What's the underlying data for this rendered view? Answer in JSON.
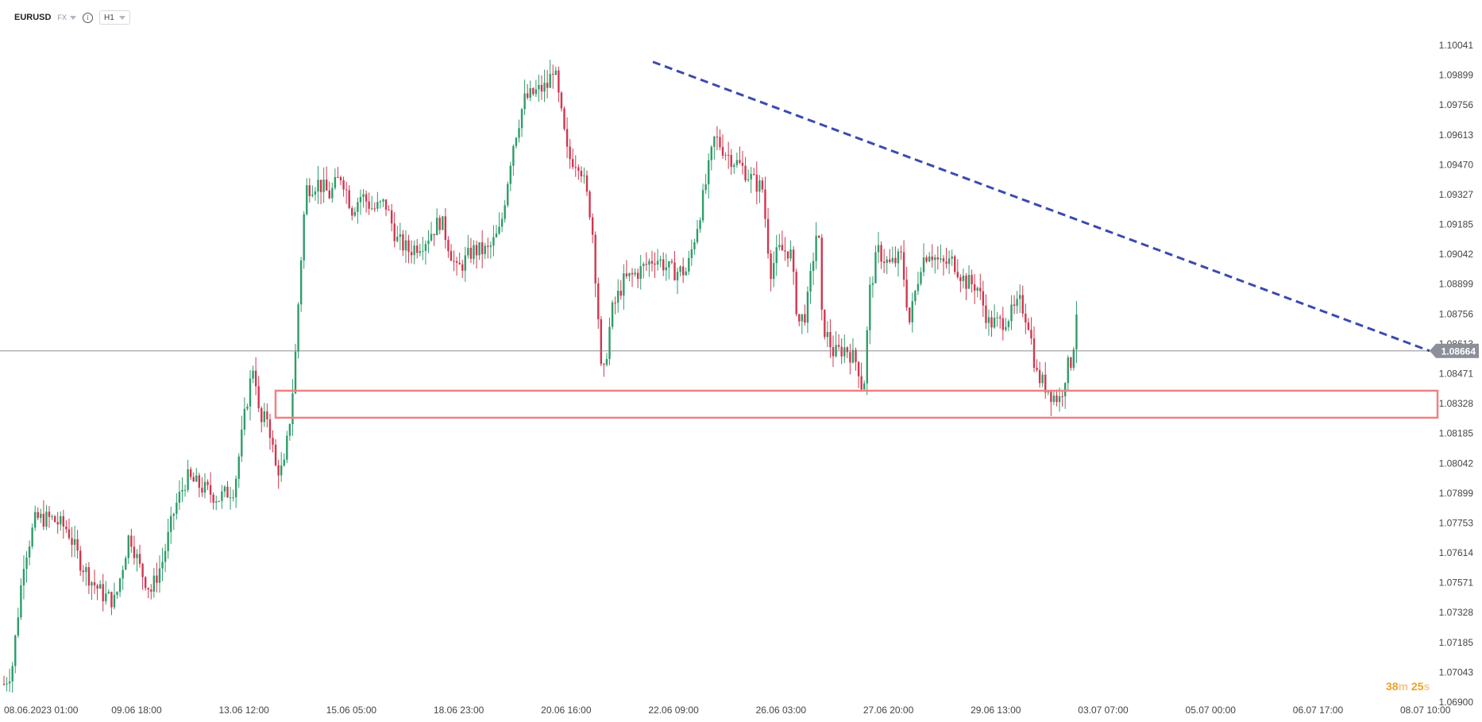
{
  "header": {
    "symbol": "EURUSD",
    "market": "FX",
    "timeframe": "H1"
  },
  "timer": {
    "minutes": "38",
    "minutes_unit": "m",
    "seconds": "25",
    "seconds_unit": "s"
  },
  "colors": {
    "bull": "#2e9c6a",
    "bear": "#d1364e",
    "trendline": "#3a4ab0",
    "zone": "#f08080",
    "price_badge": "#8a8f98"
  },
  "chart_data": {
    "type": "candlestick",
    "symbol": "EURUSD",
    "timeframe": "H1",
    "ylim": [
      1.069,
      1.1018
    ],
    "y_ticks": [
      "1.10041",
      "1.09899",
      "1.09756",
      "1.09613",
      "1.09470",
      "1.09327",
      "1.09185",
      "1.09042",
      "1.08899",
      "1.08756",
      "1.08613",
      "1.08471",
      "1.08328",
      "1.08185",
      "1.08042",
      "1.07899",
      "1.07753",
      "1.07614",
      "1.07571",
      "1.07328",
      "1.07185",
      "1.07043",
      "1.06900"
    ],
    "x_labels": [
      "08.06.2023 01:00",
      "09.06 18:00",
      "13.06 12:00",
      "15.06 05:00",
      "18.06 23:00",
      "20.06 16:00",
      "22.06 09:00",
      "26.06 03:00",
      "27.06 20:00",
      "29.06 13:00",
      "03.07 07:00",
      "05.07 00:00",
      "06.07 17:00",
      "08.07 10:00"
    ],
    "current_price": "1.08664",
    "current_price_value": 1.08664,
    "bars": 380,
    "path": [
      [
        0,
        1.0705
      ],
      [
        10,
        1.0712
      ],
      [
        25,
        1.0765
      ],
      [
        40,
        1.0785
      ],
      [
        60,
        1.0785
      ],
      [
        80,
        1.078
      ],
      [
        95,
        1.0765
      ],
      [
        110,
        1.0755
      ],
      [
        125,
        1.0748
      ],
      [
        140,
        1.0745
      ],
      [
        158,
        1.0778
      ],
      [
        172,
        1.076
      ],
      [
        185,
        1.075
      ],
      [
        200,
        1.0765
      ],
      [
        215,
        1.079
      ],
      [
        230,
        1.0805
      ],
      [
        250,
        1.08
      ],
      [
        270,
        1.0795
      ],
      [
        290,
        1.08
      ],
      [
        305,
        1.084
      ],
      [
        315,
        1.0862
      ],
      [
        322,
        1.083
      ],
      [
        332,
        1.0835
      ],
      [
        342,
        1.081
      ],
      [
        352,
        1.0808
      ],
      [
        362,
        1.084
      ],
      [
        368,
        1.087
      ],
      [
        372,
        1.09
      ],
      [
        380,
        1.0945
      ],
      [
        395,
        1.0948
      ],
      [
        410,
        1.0942
      ],
      [
        425,
        1.0952
      ],
      [
        438,
        1.0935
      ],
      [
        450,
        1.0942
      ],
      [
        465,
        1.0935
      ],
      [
        480,
        1.0938
      ],
      [
        495,
        1.092
      ],
      [
        510,
        1.0915
      ],
      [
        530,
        1.092
      ],
      [
        550,
        1.093
      ],
      [
        570,
        1.0905
      ],
      [
        590,
        1.0915
      ],
      [
        610,
        1.0915
      ],
      [
        625,
        1.0925
      ],
      [
        640,
        1.0965
      ],
      [
        655,
        1.0988
      ],
      [
        670,
        1.0992
      ],
      [
        685,
        1.0995
      ],
      [
        692,
        1.1005
      ],
      [
        700,
        1.0985
      ],
      [
        710,
        1.096
      ],
      [
        725,
        1.0958
      ],
      [
        740,
        1.093
      ],
      [
        748,
        1.0885
      ],
      [
        753,
        1.0848
      ],
      [
        765,
        1.0885
      ],
      [
        780,
        1.09
      ],
      [
        800,
        1.0905
      ],
      [
        820,
        1.0912
      ],
      [
        840,
        1.0905
      ],
      [
        860,
        1.0905
      ],
      [
        880,
        1.094
      ],
      [
        895,
        1.097
      ],
      [
        910,
        1.0962
      ],
      [
        930,
        1.0955
      ],
      [
        945,
        1.0948
      ],
      [
        955,
        1.0945
      ],
      [
        965,
        1.0905
      ],
      [
        975,
        1.0915
      ],
      [
        990,
        1.0915
      ],
      [
        1000,
        1.088
      ],
      [
        1010,
        1.0885
      ],
      [
        1020,
        1.0915
      ],
      [
        1025,
        1.093
      ],
      [
        1030,
        1.088
      ],
      [
        1045,
        1.0865
      ],
      [
        1060,
        1.0868
      ],
      [
        1075,
        1.086
      ],
      [
        1082,
        1.0845
      ],
      [
        1090,
        1.0895
      ],
      [
        1100,
        1.0915
      ],
      [
        1115,
        1.0908
      ],
      [
        1130,
        1.0912
      ],
      [
        1140,
        1.088
      ],
      [
        1155,
        1.091
      ],
      [
        1165,
        1.0915
      ],
      [
        1180,
        1.0908
      ],
      [
        1195,
        1.091
      ],
      [
        1210,
        1.09
      ],
      [
        1225,
        1.0898
      ],
      [
        1240,
        1.088
      ],
      [
        1255,
        1.088
      ],
      [
        1270,
        1.0885
      ],
      [
        1280,
        1.089
      ],
      [
        1290,
        1.088
      ],
      [
        1300,
        1.0855
      ],
      [
        1310,
        1.085
      ],
      [
        1320,
        1.0845
      ],
      [
        1330,
        1.0843
      ],
      [
        1338,
        1.0858
      ],
      [
        1345,
        1.0862
      ],
      [
        1352,
        1.0893
      ],
      [
        1354,
        1.0865
      ]
    ],
    "trendline": {
      "from": [
        "22.06 09:00",
        1.10065
      ],
      "to": [
        "07.07",
        1.08664
      ],
      "style": "dashed"
    },
    "support_zone": {
      "top": 1.08471,
      "bottom": 1.0834,
      "from": "14.06",
      "to": "right-edge"
    }
  }
}
